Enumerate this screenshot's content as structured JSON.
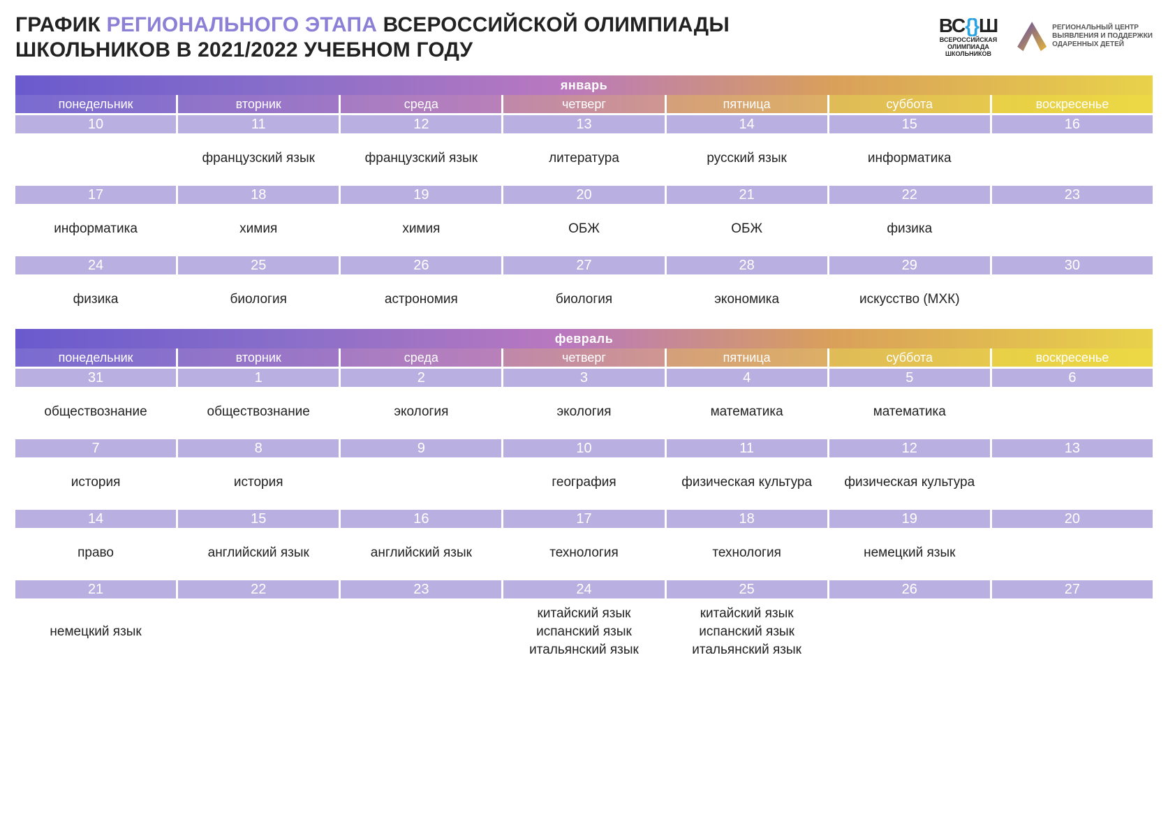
{
  "title": {
    "part1": "ГРАФИК ",
    "accent": "РЕГИОНАЛЬНОГО ЭТАПА",
    "part2": " ВСЕРОССИЙСКОЙ ОЛИМПИАДЫ",
    "line2": "ШКОЛЬНИКОВ В 2021/2022 УЧЕБНОМ ГОДУ"
  },
  "logos": {
    "vsosh_big_left": "ВС",
    "vsosh_big_right": "Ш",
    "vsosh_sub1": "ВСЕРОССИЙСКАЯ",
    "vsosh_sub2": "ОЛИМПИАДА",
    "vsosh_sub3": "ШКОЛЬНИКОВ",
    "center1": "РЕГИОНАЛЬНЫЙ ЦЕНТР",
    "center2": "ВЫЯВЛЕНИЯ И ПОДДЕРЖКИ",
    "center3": "ОДАРЕННЫХ ДЕТЕЙ"
  },
  "dow": [
    "понедельник",
    "вторник",
    "среда",
    "четверг",
    "пятница",
    "суббота",
    "воскресенье"
  ],
  "dow_gradient_stops": [
    [
      "#7a6bd0",
      "#8971cc"
    ],
    [
      "#8e73ca",
      "#9f77c6"
    ],
    [
      "#a67bc3",
      "#b980ba"
    ],
    [
      "#c088a9",
      "#cf9690"
    ],
    [
      "#d49f7a",
      "#dcaf66"
    ],
    [
      "#e0bb58",
      "#e6c84d"
    ],
    [
      "#e8cf47",
      "#ecd844"
    ]
  ],
  "months": [
    {
      "name": "январь",
      "weeks": [
        {
          "dates": [
            "10",
            "11",
            "12",
            "13",
            "14",
            "15",
            "16"
          ],
          "subjects": [
            [
              ""
            ],
            [
              "французский язык"
            ],
            [
              "французский язык"
            ],
            [
              "литература"
            ],
            [
              "русский язык"
            ],
            [
              "информатика"
            ],
            [
              ""
            ]
          ]
        },
        {
          "dates": [
            "17",
            "18",
            "19",
            "20",
            "21",
            "22",
            "23"
          ],
          "subjects": [
            [
              "информатика"
            ],
            [
              "химия"
            ],
            [
              "химия"
            ],
            [
              "ОБЖ"
            ],
            [
              "ОБЖ"
            ],
            [
              "физика"
            ],
            [
              ""
            ]
          ]
        },
        {
          "dates": [
            "24",
            "25",
            "26",
            "27",
            "28",
            "29",
            "30"
          ],
          "subjects": [
            [
              "физика"
            ],
            [
              "биология"
            ],
            [
              "астрономия"
            ],
            [
              "биология"
            ],
            [
              "экономика"
            ],
            [
              "искусство (МХК)"
            ],
            [
              ""
            ]
          ]
        }
      ]
    },
    {
      "name": "февраль",
      "weeks": [
        {
          "dates": [
            "31",
            "1",
            "2",
            "3",
            "4",
            "5",
            "6"
          ],
          "subjects": [
            [
              "обществознание"
            ],
            [
              "обществознание"
            ],
            [
              "экология"
            ],
            [
              "экология"
            ],
            [
              "математика"
            ],
            [
              "математика"
            ],
            [
              ""
            ]
          ]
        },
        {
          "dates": [
            "7",
            "8",
            "9",
            "10",
            "11",
            "12",
            "13"
          ],
          "subjects": [
            [
              "история"
            ],
            [
              "история"
            ],
            [
              ""
            ],
            [
              "география"
            ],
            [
              "физическая культура"
            ],
            [
              "физическая культура"
            ],
            [
              ""
            ]
          ]
        },
        {
          "dates": [
            "14",
            "15",
            "16",
            "17",
            "18",
            "19",
            "20"
          ],
          "subjects": [
            [
              "право"
            ],
            [
              "английский язык"
            ],
            [
              "английский язык"
            ],
            [
              "технология"
            ],
            [
              "технология"
            ],
            [
              "немецкий язык"
            ],
            [
              ""
            ]
          ]
        },
        {
          "dates": [
            "21",
            "22",
            "23",
            "24",
            "25",
            "26",
            "27"
          ],
          "subjects": [
            [
              "немецкий язык"
            ],
            [
              ""
            ],
            [
              ""
            ],
            [
              "китайский язык",
              "испанский язык",
              "итальянский язык"
            ],
            [
              "китайский язык",
              "испанский язык",
              "итальянский язык"
            ],
            [
              ""
            ],
            [
              ""
            ]
          ],
          "tall": true
        }
      ]
    }
  ],
  "colors": {
    "date_band": "#b9afe0",
    "title_accent": "#8b7fd6"
  }
}
